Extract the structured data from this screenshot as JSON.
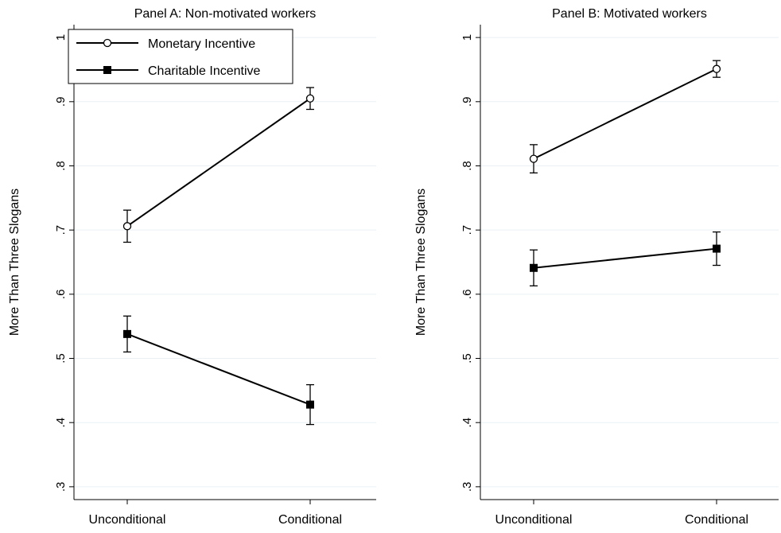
{
  "chart_data": [
    {
      "type": "line",
      "title": "Panel A: Non-motivated workers",
      "xlabel": "",
      "ylabel": "More Than Three Slogans",
      "categories": [
        "Unconditional",
        "Conditional"
      ],
      "ylim": [
        0.28,
        1.02
      ],
      "yticks": [
        0.3,
        0.4,
        0.5,
        0.6,
        0.7,
        0.8,
        0.9,
        1.0
      ],
      "ytick_labels": [
        ".3",
        ".4",
        ".5",
        ".6",
        ".7",
        ".8",
        ".9",
        "1"
      ],
      "grid": true,
      "legend": "top-left",
      "series": [
        {
          "name": "Monetary Incentive",
          "marker": "hollow-circle",
          "values": [
            0.706,
            0.905
          ],
          "ci_low": [
            0.681,
            0.888
          ],
          "ci_high": [
            0.731,
            0.922
          ]
        },
        {
          "name": "Charitable Incentive",
          "marker": "filled-square",
          "values": [
            0.538,
            0.428
          ],
          "ci_low": [
            0.51,
            0.397
          ],
          "ci_high": [
            0.566,
            0.459
          ]
        }
      ]
    },
    {
      "type": "line",
      "title": "Panel B: Motivated workers",
      "xlabel": "",
      "ylabel": "More Than Three Slogans",
      "categories": [
        "Unconditional",
        "Conditional"
      ],
      "ylim": [
        0.28,
        1.02
      ],
      "yticks": [
        0.3,
        0.4,
        0.5,
        0.6,
        0.7,
        0.8,
        0.9,
        1.0
      ],
      "ytick_labels": [
        ".3",
        ".4",
        ".5",
        ".6",
        ".7",
        ".8",
        ".9",
        "1"
      ],
      "grid": true,
      "series": [
        {
          "name": "Monetary Incentive",
          "marker": "hollow-circle",
          "values": [
            0.811,
            0.951
          ],
          "ci_low": [
            0.789,
            0.938
          ],
          "ci_high": [
            0.833,
            0.964
          ]
        },
        {
          "name": "Charitable Incentive",
          "marker": "filled-square",
          "values": [
            0.641,
            0.671
          ],
          "ci_low": [
            0.613,
            0.645
          ],
          "ci_high": [
            0.669,
            0.697
          ]
        }
      ]
    }
  ]
}
